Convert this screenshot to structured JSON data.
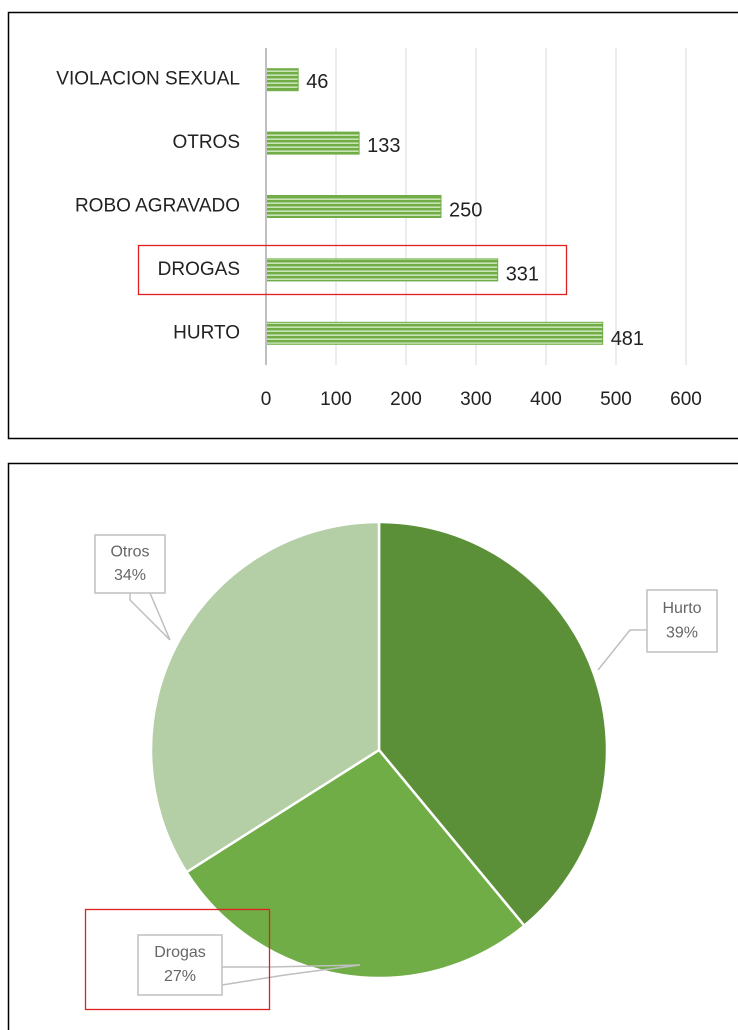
{
  "chart_data": [
    {
      "type": "bar",
      "orientation": "horizontal",
      "categories": [
        "VIOLACION SEXUAL",
        "OTROS",
        "ROBO AGRAVADO",
        "DROGAS",
        "HURTO"
      ],
      "values": [
        46,
        133,
        250,
        331,
        481
      ],
      "color": "#70ad47",
      "xlim": [
        0,
        600
      ],
      "xticks": [
        0,
        100,
        200,
        300,
        400,
        500,
        600
      ],
      "grid": true
    },
    {
      "type": "pie",
      "categories": [
        "Hurto",
        "Drogas",
        "Otros"
      ],
      "values": [
        39,
        27,
        34
      ],
      "value_labels": [
        "39%",
        "27%",
        "34%"
      ],
      "colors": [
        "#5b9038",
        "#70ad47",
        "#b4cea6"
      ]
    }
  ]
}
